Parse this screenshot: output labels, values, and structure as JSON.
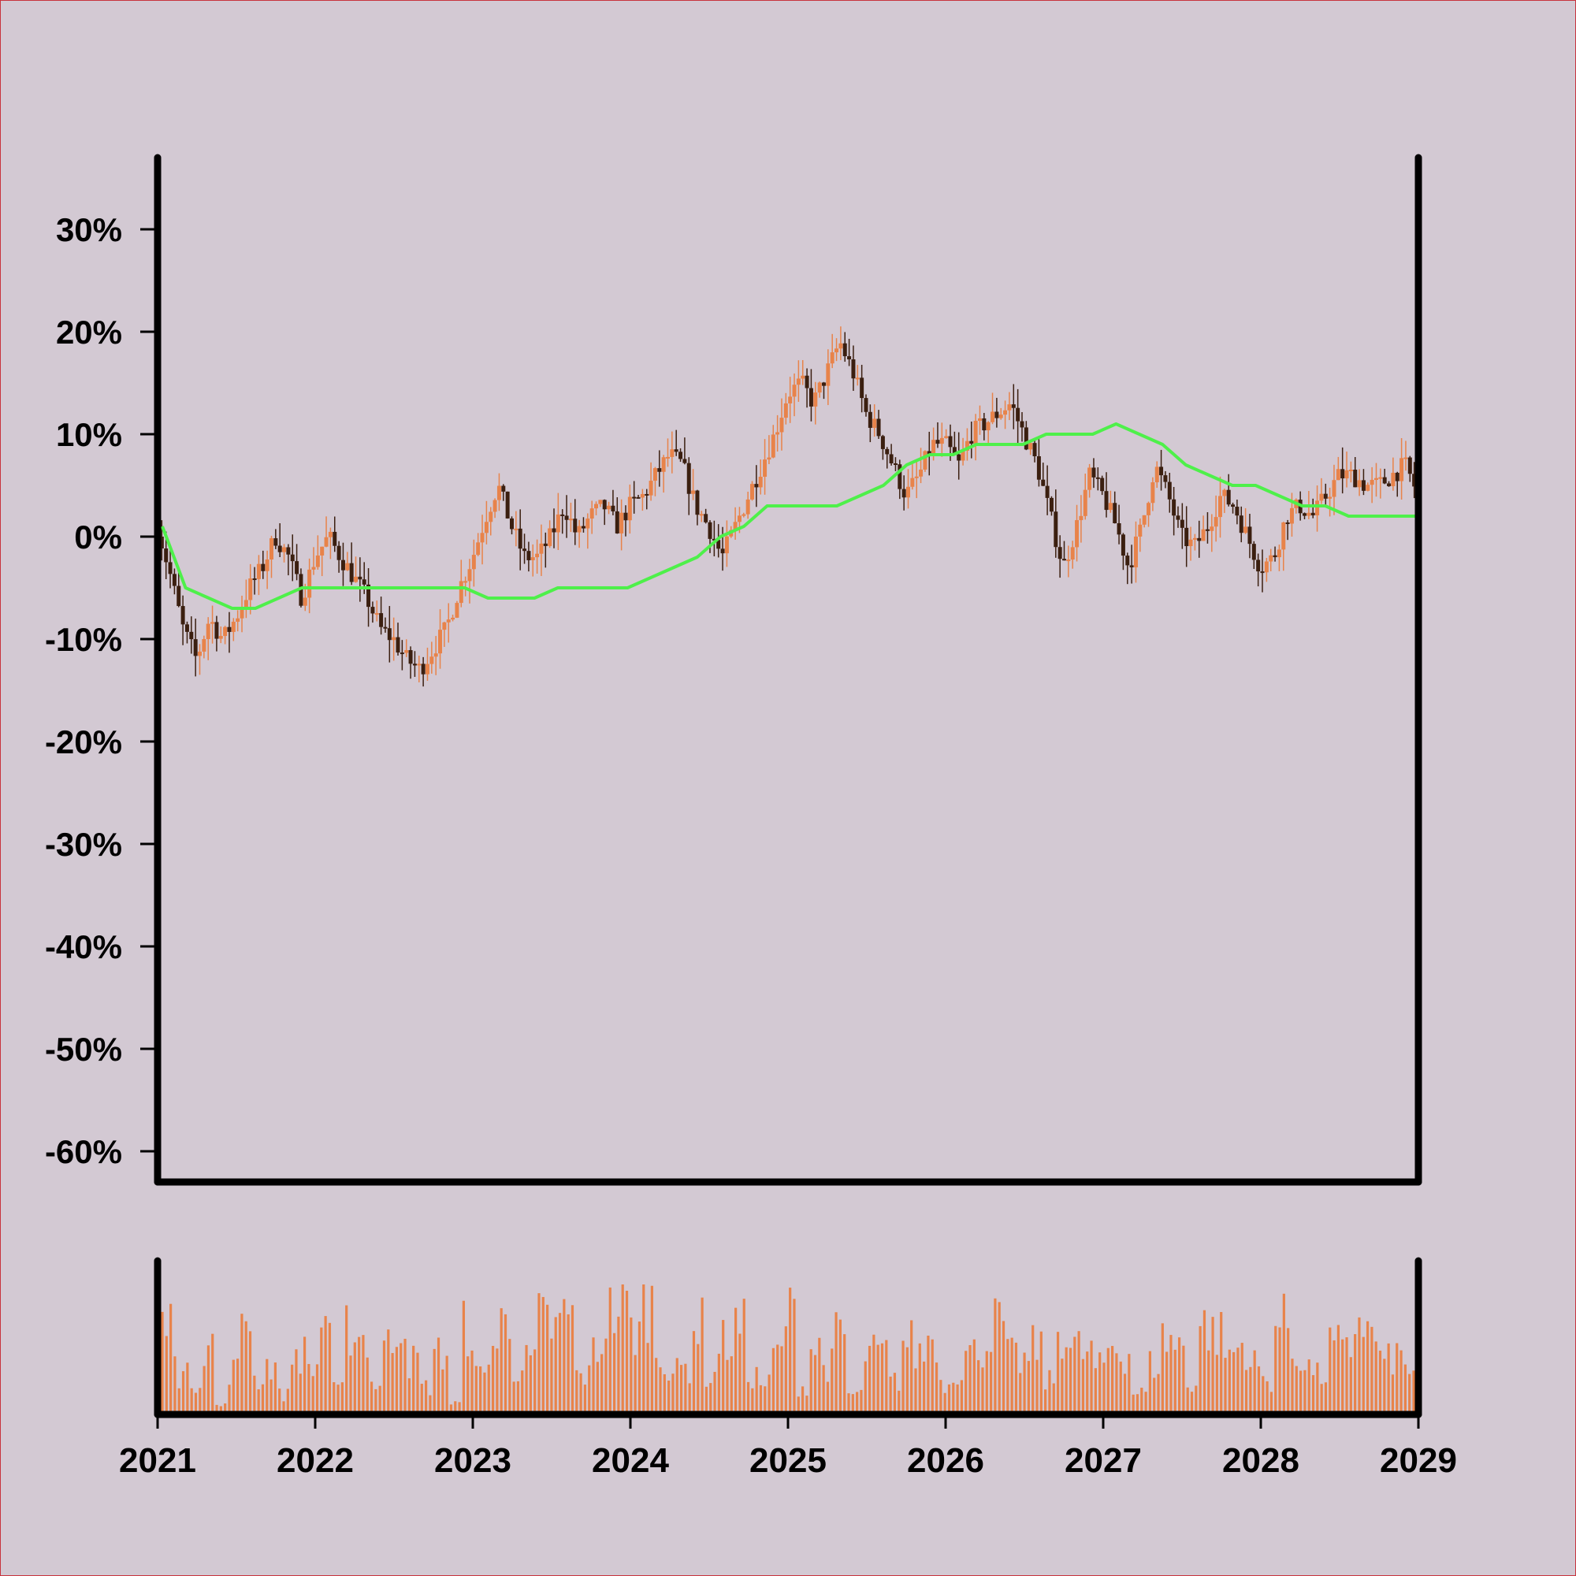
{
  "chart_data": {
    "type": "candlestick",
    "background_color": "#d3c9d3",
    "colors": {
      "up_candle": "#e8834a",
      "down_candle": "#3b1f10",
      "moving_average": "#4ef04a",
      "volume": "#e8834a",
      "axes": "#000000"
    },
    "x_axis": {
      "range": [
        "2021-01-01",
        "2029-01-01"
      ],
      "tick_labels": [
        "2021",
        "2022",
        "2023",
        "2024",
        "2025",
        "2026",
        "2027",
        "2028",
        "2029"
      ]
    },
    "y_axis": {
      "range": [
        -63,
        37
      ],
      "unit": "%",
      "tick_values": [
        30,
        20,
        10,
        0,
        -10,
        -20,
        -30,
        -40,
        -50,
        -60
      ],
      "tick_labels": [
        "30%",
        "20%",
        "10%",
        "0%",
        "-10%",
        "-20%",
        "-30%",
        "-40%",
        "-50%",
        "-60%"
      ]
    },
    "grid": false,
    "price_path": {
      "description_units": "percent return, weekly-ish closes sampled from chart",
      "dates": [
        "2021-01-01",
        "2021-02-01",
        "2021-03-01",
        "2021-04-01",
        "2021-05-01",
        "2021-06-01",
        "2021-07-01",
        "2021-08-01",
        "2021-09-01",
        "2021-10-01",
        "2021-11-01",
        "2021-12-01",
        "2022-01-01",
        "2022-02-01",
        "2022-03-01",
        "2022-04-01",
        "2022-05-01",
        "2022-06-01",
        "2022-07-01",
        "2022-08-01",
        "2022-09-01",
        "2022-10-01",
        "2022-11-01",
        "2022-12-01",
        "2023-01-01",
        "2023-02-01",
        "2023-03-01",
        "2023-04-01",
        "2023-05-01",
        "2023-06-01",
        "2023-07-01",
        "2023-08-01",
        "2023-09-01",
        "2023-10-01",
        "2023-11-01",
        "2023-12-01",
        "2024-01-01",
        "2024-02-01",
        "2024-03-01",
        "2024-04-01",
        "2024-05-01",
        "2024-06-01",
        "2024-07-01",
        "2024-08-01",
        "2024-09-01",
        "2024-10-01",
        "2024-11-01",
        "2024-12-01",
        "2025-01-01",
        "2025-02-01",
        "2025-03-01",
        "2025-04-01",
        "2025-05-01",
        "2025-06-01",
        "2025-07-01",
        "2025-08-01",
        "2025-09-01",
        "2025-10-01",
        "2025-11-01",
        "2025-12-01",
        "2026-01-01",
        "2026-02-01",
        "2026-03-01",
        "2026-04-01",
        "2026-05-01",
        "2026-06-01",
        "2026-07-01",
        "2026-08-01",
        "2026-09-01",
        "2026-10-01",
        "2026-11-01",
        "2026-12-01",
        "2027-01-01",
        "2027-02-01",
        "2027-03-01",
        "2027-04-01",
        "2027-05-01",
        "2027-06-01",
        "2027-07-01",
        "2027-08-01",
        "2027-09-01",
        "2027-10-01",
        "2027-11-01",
        "2027-12-01",
        "2028-01-01",
        "2028-02-01",
        "2028-03-01",
        "2028-04-01",
        "2028-05-01",
        "2028-06-01",
        "2028-07-01",
        "2028-08-01",
        "2028-09-01",
        "2028-10-01",
        "2028-11-01",
        "2028-12-01",
        "2029-01-01"
      ],
      "values": [
        1,
        -4,
        -9,
        -12,
        -8,
        -10,
        -8,
        -5,
        -3,
        0,
        -2,
        -6,
        -2,
        0,
        -2,
        -4,
        -6,
        -9,
        -10,
        -12,
        -13,
        -11,
        -9,
        -5,
        -2,
        2,
        5,
        1,
        -2,
        -2,
        0,
        3,
        0,
        2,
        3,
        1,
        3,
        4,
        6,
        8,
        7,
        3,
        1,
        -2,
        1,
        4,
        7,
        10,
        14,
        15,
        13,
        16,
        19,
        16,
        12,
        10,
        7,
        4,
        6,
        9,
        9,
        7,
        10,
        11,
        12,
        13,
        10,
        7,
        2,
        -3,
        1,
        6,
        4,
        1,
        -3,
        1,
        7,
        4,
        0,
        -1,
        1,
        4,
        3,
        0,
        -3,
        -2,
        2,
        3,
        2,
        4,
        6,
        6,
        5,
        5,
        6,
        7,
        4
      ]
    },
    "moving_average_path": {
      "values": [
        1,
        -5,
        -6,
        -7,
        -7,
        -6,
        -5,
        -5,
        -5,
        -5,
        -5,
        -5,
        -5,
        -5,
        -6,
        -6,
        -6,
        -5,
        -5,
        -5,
        -5,
        -4,
        -3,
        -2,
        0,
        1,
        3,
        3,
        3,
        3,
        4,
        5,
        7,
        8,
        8,
        9,
        9,
        9,
        10,
        10,
        10,
        11,
        10,
        9,
        7,
        6,
        5,
        5,
        4,
        3,
        3,
        2,
        2,
        2,
        2
      ]
    },
    "volume": {
      "relative_heights": [
        0.8,
        0.35,
        0.3,
        0.65,
        0.08,
        0.4,
        0.95,
        0.32,
        0.45,
        0.18,
        0.55,
        0.42,
        0.88,
        0.22,
        0.78,
        0.7,
        0.28,
        0.62,
        0.84,
        0.48,
        0.25,
        0.55,
        0.1,
        0.78,
        0.35,
        0.62,
        0.82,
        0.42,
        0.48,
        0.85,
        0.78,
        0.9,
        0.35,
        0.6,
        0.92,
        0.98,
        0.75,
        1.0,
        0.55,
        0.38,
        0.42,
        0.8,
        0.35,
        0.65,
        0.78,
        0.35,
        0.28,
        0.55,
        0.9,
        0.25,
        0.6,
        0.45,
        0.72,
        0.18,
        0.55,
        0.55,
        0.3,
        0.65,
        0.55,
        0.7,
        0.28,
        0.4,
        0.55,
        0.62,
        0.82,
        0.52,
        0.48,
        0.6,
        0.3,
        0.75,
        0.6,
        0.55,
        0.42,
        0.62,
        0.55,
        0.2,
        0.45,
        0.68,
        0.62,
        0.28,
        0.8,
        0.72,
        0.55,
        0.62,
        0.45,
        0.3,
        0.82,
        0.55,
        0.42,
        0.35,
        0.62,
        0.55,
        0.88,
        0.72,
        0.48,
        0.52,
        0.42
      ]
    }
  }
}
